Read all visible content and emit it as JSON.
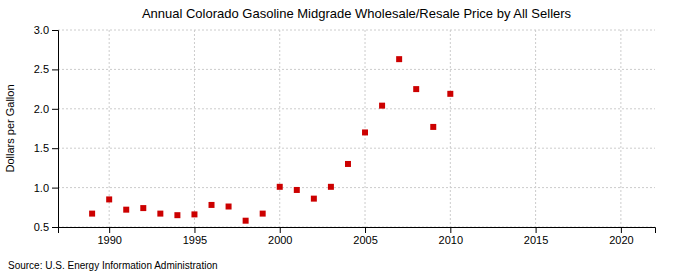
{
  "chart_data": {
    "type": "scatter",
    "title": "Annual Colorado Gasoline Midgrade Wholesale/Resale Price by All Sellers",
    "y_label": "Dollars per Gallon",
    "annotation": "Source: U.S. Energy Information Administration",
    "x": [
      1989,
      1990,
      1991,
      1992,
      1993,
      1994,
      1995,
      1996,
      1997,
      1998,
      1999,
      2000,
      2001,
      2002,
      2003,
      2004,
      2005,
      2006,
      2007,
      2008,
      2009,
      2010
    ],
    "values": [
      0.67,
      0.85,
      0.72,
      0.74,
      0.67,
      0.65,
      0.66,
      0.78,
      0.76,
      0.58,
      0.67,
      1.01,
      0.97,
      0.86,
      1.01,
      1.3,
      1.7,
      2.04,
      2.63,
      2.25,
      1.77,
      2.19
    ],
    "color": "#cc0000",
    "marker": "square",
    "xlim": [
      1987,
      2022
    ],
    "ylim": [
      0.5,
      3.0
    ],
    "xticks": [
      1990,
      1995,
      2000,
      2005,
      2010,
      2015,
      2020
    ],
    "yticks": [
      0.5,
      {
        "value": 1.0,
        "label": "1.0"
      },
      1.5,
      {
        "value": 2.0,
        "label": "2.0"
      },
      2.5,
      {
        "value": 3.0,
        "label": "3.0"
      }
    ],
    "grid": true
  }
}
